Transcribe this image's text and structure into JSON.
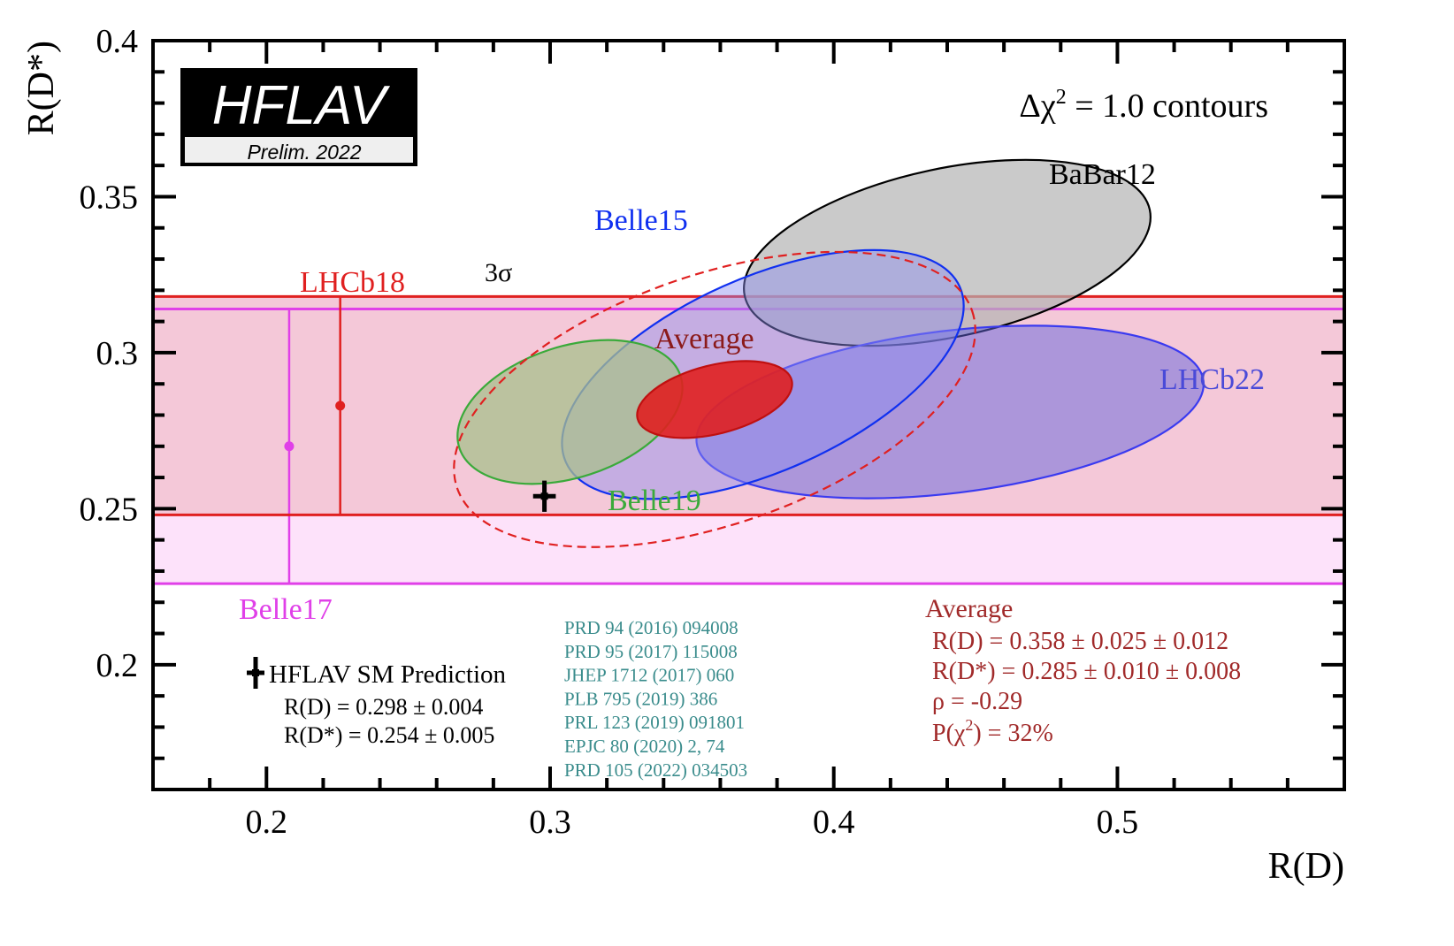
{
  "chart_data": {
    "type": "contour",
    "xlabel": "R(D)",
    "ylabel": "R(D*)",
    "xlim": [
      0.16,
      0.58
    ],
    "ylim": [
      0.16,
      0.4
    ],
    "xticks": [
      {
        "value": 0.2,
        "label": "0.2"
      },
      {
        "value": 0.3,
        "label": "0.3"
      },
      {
        "value": 0.4,
        "label": "0.4"
      },
      {
        "value": 0.5,
        "label": "0.5"
      }
    ],
    "yticks": [
      {
        "value": 0.2,
        "label": "0.2"
      },
      {
        "value": 0.25,
        "label": "0.25"
      },
      {
        "value": 0.3,
        "label": "0.3"
      },
      {
        "value": 0.35,
        "label": "0.35"
      },
      {
        "value": 0.4,
        "label": "0.4"
      }
    ],
    "contour_label": {
      "prefix": "Δχ",
      "sup": "2",
      "suffix": " = 1.0 contours"
    },
    "bands": [
      {
        "name": "Belle17",
        "low": 0.226,
        "high": 0.314,
        "center": 0.27,
        "x": 0.208,
        "color": "#e040e8",
        "fill": "#fde2fa"
      },
      {
        "name": "LHCb18",
        "low": 0.248,
        "high": 0.318,
        "center": 0.283,
        "x": 0.226,
        "color": "#e02020",
        "fill": "#f4c8d8"
      }
    ],
    "ellipses": [
      {
        "name": "BaBar12",
        "cx": 0.44,
        "cy": 0.332,
        "rx": 0.073,
        "ry": 0.027,
        "angle": -12,
        "stroke": "#000000",
        "fill": "#b4b4b4",
        "opacity": 0.7,
        "dashed": false
      },
      {
        "name": "LHCb22",
        "cx": 0.441,
        "cy": 0.281,
        "rx": 0.09,
        "ry": 0.026,
        "angle": -7,
        "stroke": "#3a3af0",
        "fill": "#6464dc",
        "opacity": 0.5,
        "dashed": false
      },
      {
        "name": "Belle15",
        "cx": 0.375,
        "cy": 0.293,
        "rx": 0.076,
        "ry": 0.031,
        "angle": -24,
        "stroke": "#1030f0",
        "fill": "#8c8cf0",
        "opacity": 0.45,
        "dashed": false
      },
      {
        "name": "Belle19",
        "cx": 0.307,
        "cy": 0.281,
        "rx": 0.041,
        "ry": 0.021,
        "angle": -18,
        "stroke": "#3aaa3a",
        "fill": "#a8c08c",
        "opacity": 0.75,
        "dashed": false
      },
      {
        "name": "3σ",
        "cx": 0.358,
        "cy": 0.285,
        "rx": 0.096,
        "ry": 0.04,
        "angle": -19,
        "stroke": "#e02020",
        "fill": "none",
        "opacity": 1,
        "dashed": true
      },
      {
        "name": "Average",
        "cx": 0.358,
        "cy": 0.285,
        "rx": 0.028,
        "ry": 0.011,
        "angle": -14,
        "stroke": "#c01010",
        "fill": "#e02020",
        "opacity": 0.9,
        "dashed": false
      }
    ],
    "sm_point": {
      "x": 0.298,
      "y": 0.254,
      "xerr": 0.004,
      "yerr": 0.005
    },
    "series_labels": [
      {
        "text": "BaBar12",
        "color": "#000000"
      },
      {
        "text": "Belle15",
        "color": "#1030f0"
      },
      {
        "text": "LHCb22",
        "color": "#4a4ad8"
      },
      {
        "text": "Average",
        "color": "#8b1a1a"
      },
      {
        "text": "Belle19",
        "color": "#3aaa3a"
      },
      {
        "text": "3σ",
        "color": "#000000"
      },
      {
        "text": "LHCb18",
        "color": "#e02020"
      },
      {
        "text": "Belle17",
        "color": "#e040e8"
      }
    ],
    "references": [
      "PRD 94 (2016) 094008",
      "PRD 95 (2017) 115008",
      "JHEP 1712 (2017) 060",
      "PLB 795 (2019) 386",
      "PRL 123 (2019) 091801",
      "EPJC 80 (2020) 2, 74",
      "PRD 105 (2022) 034503"
    ],
    "sm_legend": {
      "title": "HFLAV SM Prediction",
      "lines": [
        "R(D) = 0.298 ± 0.004",
        "R(D*) = 0.254 ± 0.005"
      ]
    },
    "average_summary": {
      "title": "Average",
      "lines": [
        "R(D) = 0.358 ± 0.025 ± 0.012",
        "R(D*) = 0.285 ± 0.010 ± 0.008",
        "ρ = -0.29"
      ],
      "pchi": {
        "prefix": "P(χ",
        "sup": "2",
        "suffix": ") = 32%"
      }
    },
    "logo": {
      "title": "HFLAV",
      "subtitle": "Prelim. 2022"
    }
  }
}
